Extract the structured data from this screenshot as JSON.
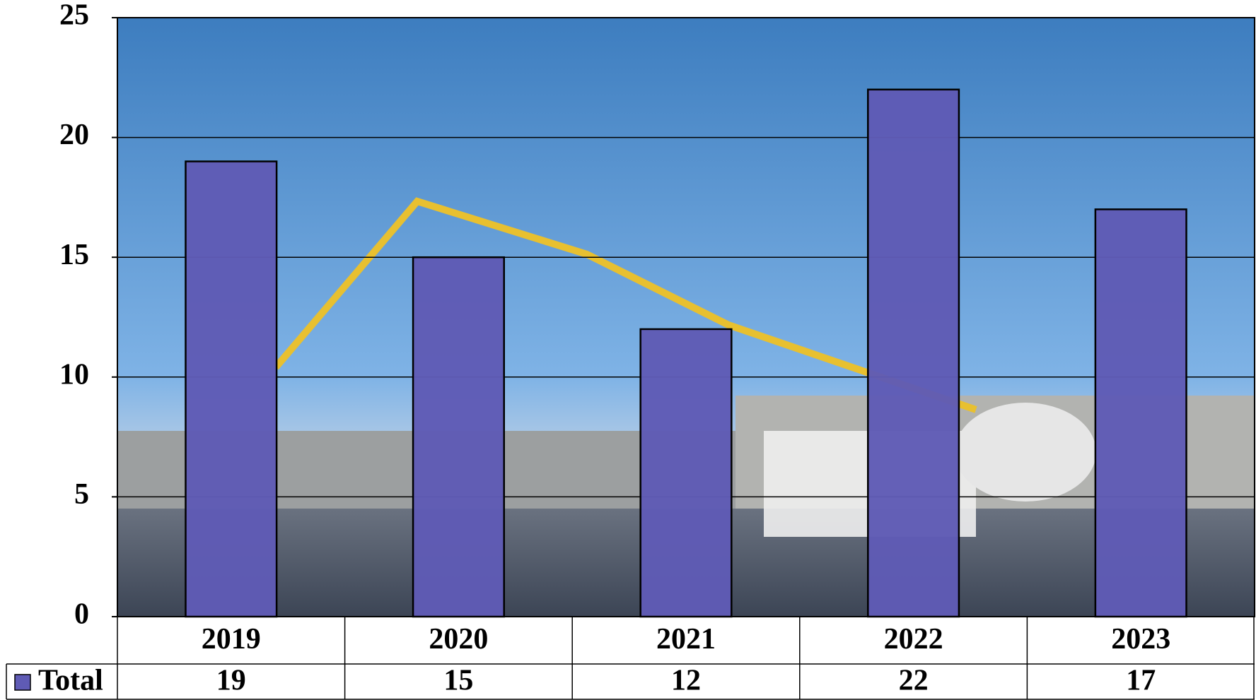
{
  "chart_data": {
    "type": "bar",
    "categories": [
      "2019",
      "2020",
      "2021",
      "2022",
      "2023"
    ],
    "series": [
      {
        "name": "Total",
        "color": "#5f5bb5",
        "values": [
          19,
          15,
          12,
          22,
          17
        ]
      }
    ],
    "ylim": [
      0,
      25
    ],
    "yticks": [
      0,
      5,
      10,
      15,
      20,
      25
    ],
    "grid": true
  }
}
